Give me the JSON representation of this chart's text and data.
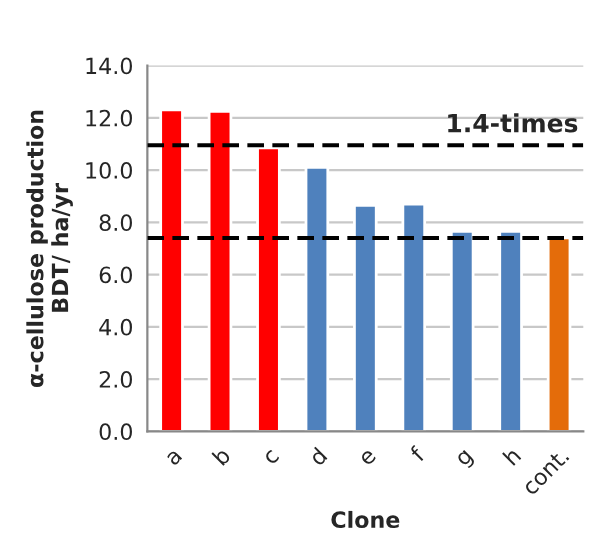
{
  "chart_data": {
    "type": "bar",
    "xlabel": "Clone",
    "ylabel": "α-cellulose production\nBDT/ ha/yr",
    "categories": [
      "a",
      "b",
      "c",
      "d",
      "e",
      "f",
      "g",
      "h",
      "cont."
    ],
    "values": [
      12.3,
      12.25,
      10.85,
      10.1,
      8.65,
      8.7,
      7.65,
      7.65,
      7.4
    ],
    "colors": [
      "#ff0000",
      "#ff0000",
      "#ff0000",
      "#4f81bd",
      "#4f81bd",
      "#4f81bd",
      "#4f81bd",
      "#4f81bd",
      "#e46c0a"
    ],
    "ylim": [
      0,
      14
    ],
    "yticks": [
      {
        "value": 0,
        "label": "0.0"
      },
      {
        "value": 2,
        "label": "2.0"
      },
      {
        "value": 4,
        "label": "4.0"
      },
      {
        "value": 6,
        "label": "6.0"
      },
      {
        "value": 8,
        "label": "8.0"
      },
      {
        "value": 10,
        "label": "10.0"
      },
      {
        "value": 12,
        "label": "12.0"
      },
      {
        "value": 14,
        "label": "14.0"
      }
    ],
    "grid": "y",
    "ref_lines": [
      {
        "axis": "y",
        "value": 10.95,
        "label": "1.4-times",
        "color": "#000000",
        "line_style": "dashed"
      },
      {
        "axis": "y",
        "value": 7.4,
        "color": "#000000",
        "line_style": "dashed"
      }
    ]
  }
}
